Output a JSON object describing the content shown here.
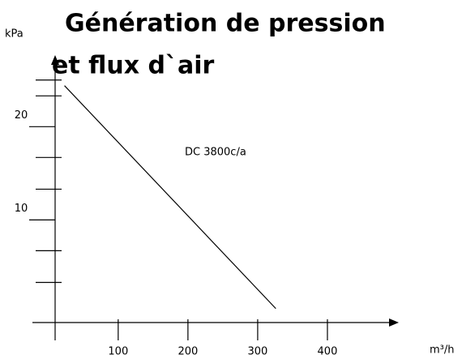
{
  "chart_data": {
    "type": "line",
    "title_lines": [
      "Génération de pression",
      "et flux d`air"
    ],
    "y_label": "kPa",
    "x_label": "m³/h",
    "annotation": "DC 3800c/a",
    "series": [
      {
        "name": "DC 3800c/a",
        "color": "#000000",
        "x": [
          23,
          326
        ],
        "values": [
          24.4,
          0.5
        ]
      }
    ],
    "xlim": [
      -23,
      500
    ],
    "xticks": [
      100,
      200,
      300,
      400
    ],
    "ylim": [
      -1,
      27.5
    ],
    "yticks": [
      10,
      20
    ],
    "yminor_ticks": [
      3.3,
      6.7,
      13.3,
      16.7,
      23.3,
      25
    ]
  }
}
